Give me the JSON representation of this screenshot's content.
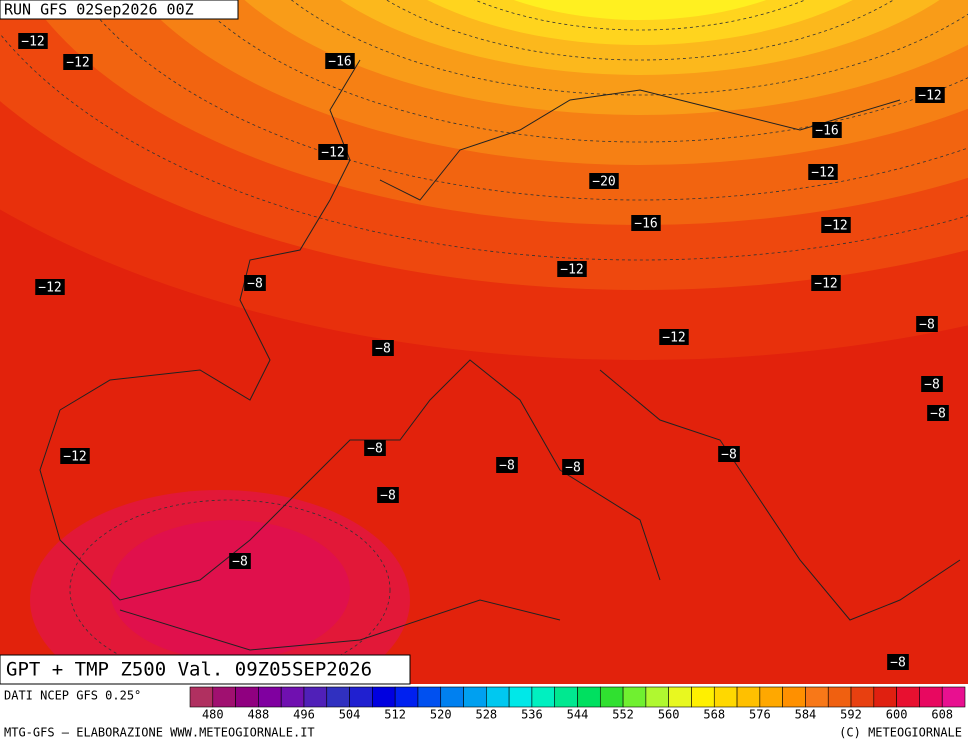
{
  "header": {
    "run": "RUN GFS 02Sep2026 00Z"
  },
  "map": {
    "temperature_labels": [
      "−12",
      "−12",
      "−16",
      "−12",
      "−16",
      "−12",
      "−20",
      "−12",
      "−16",
      "−12",
      "−12",
      "−8",
      "−12",
      "−12",
      "−8",
      "−12",
      "−8",
      "−8",
      "−8",
      "−8",
      "−12",
      "−8",
      "−8",
      "−8",
      "−8",
      "−8",
      "−8"
    ]
  },
  "footer": {
    "title": "GPT + TMP Z500 Val. 09Z05SEP2026",
    "source": "DATI NCEP GFS 0.25°",
    "credit_left": "MTG-GFS — ELABORAZIONE WWW.METEOGIORNALE.IT",
    "credit_right": "(C) METEOGIORNALE"
  },
  "colorbar": {
    "ticks": [
      480,
      488,
      496,
      504,
      512,
      520,
      528,
      536,
      544,
      552,
      560,
      568,
      576,
      584,
      592,
      600,
      608
    ],
    "colors": [
      "#b03060",
      "#a01070",
      "#900080",
      "#8000a0",
      "#7010b0",
      "#5020b8",
      "#3030c0",
      "#2020d0",
      "#0000e0",
      "#0020f0",
      "#0050f0",
      "#0080f0",
      "#00a0f0",
      "#00c8f0",
      "#00e8e8",
      "#00f0c0",
      "#00e890",
      "#00e060",
      "#30e030",
      "#70f030",
      "#b0f830",
      "#e8f820",
      "#fff000",
      "#ffd800",
      "#ffc000",
      "#ffa800",
      "#ff9000",
      "#f87818",
      "#f06010",
      "#e84010",
      "#e02010",
      "#e81030",
      "#e80860",
      "#e81090"
    ]
  }
}
